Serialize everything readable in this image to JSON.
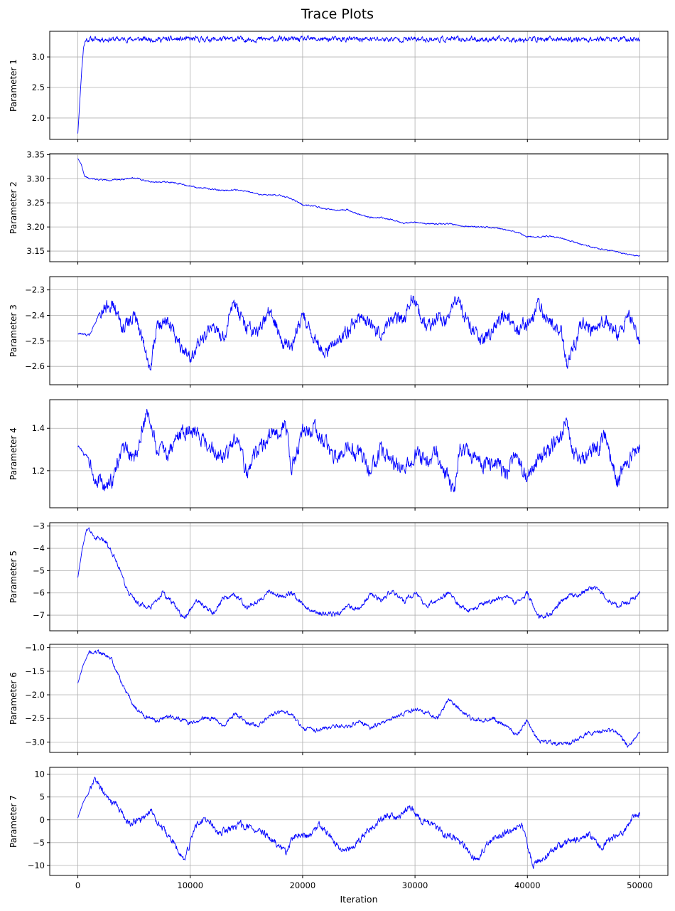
{
  "figure": {
    "title": "Trace Plots",
    "xlabel": "Iteration"
  },
  "colors": {
    "line": "#0000ff",
    "grid": "#b0b0b0",
    "axis": "#000000"
  },
  "chart_data": [
    {
      "type": "line",
      "ylabel": "Parameter 1",
      "grid": true,
      "xlim": [
        -2500,
        52500
      ],
      "ylim": [
        1.65,
        3.42
      ],
      "xticks": [
        0,
        10000,
        20000,
        30000,
        40000,
        50000
      ],
      "yticks": [
        2.0,
        2.5,
        3.0
      ],
      "ytick_labels": [
        "2.0",
        "2.5",
        "3.0"
      ],
      "x": [
        0,
        150,
        350,
        500,
        700,
        1000,
        3000,
        6000,
        10000,
        15000,
        20000,
        25000,
        30000,
        35000,
        40000,
        45000,
        50000
      ],
      "y": [
        1.75,
        2.2,
        2.8,
        3.15,
        3.28,
        3.29,
        3.29,
        3.29,
        3.29,
        3.29,
        3.29,
        3.29,
        3.29,
        3.29,
        3.29,
        3.29,
        3.29
      ],
      "noise": 0.035,
      "seed": 11
    },
    {
      "type": "line",
      "ylabel": "Parameter 2",
      "grid": true,
      "xlim": [
        -2500,
        52500
      ],
      "ylim": [
        3.128,
        3.352
      ],
      "xticks": [
        0,
        10000,
        20000,
        30000,
        40000,
        50000
      ],
      "yticks": [
        3.15,
        3.2,
        3.25,
        3.3,
        3.35
      ],
      "ytick_labels": [
        "3.15",
        "3.20",
        "3.25",
        "3.30",
        "3.35"
      ],
      "x": [
        0,
        300,
        600,
        1000,
        2000,
        3000,
        4000,
        5000,
        6000,
        7000,
        8000,
        9000,
        10000,
        11000,
        12000,
        13000,
        14000,
        15000,
        16000,
        17000,
        18000,
        19000,
        20000,
        21000,
        22000,
        23000,
        24000,
        25000,
        26000,
        27000,
        28000,
        29000,
        30000,
        31000,
        32000,
        33000,
        34000,
        35000,
        36000,
        37000,
        38000,
        39000,
        40000,
        41000,
        42000,
        43000,
        44000,
        45000,
        46000,
        47000,
        48000,
        49000,
        50000
      ],
      "y": [
        3.342,
        3.33,
        3.305,
        3.3,
        3.298,
        3.297,
        3.299,
        3.302,
        3.296,
        3.293,
        3.294,
        3.29,
        3.284,
        3.281,
        3.278,
        3.276,
        3.277,
        3.274,
        3.268,
        3.266,
        3.266,
        3.258,
        3.246,
        3.244,
        3.237,
        3.234,
        3.236,
        3.226,
        3.22,
        3.219,
        3.215,
        3.208,
        3.21,
        3.207,
        3.206,
        3.207,
        3.202,
        3.201,
        3.2,
        3.199,
        3.194,
        3.19,
        3.18,
        3.179,
        3.181,
        3.177,
        3.17,
        3.163,
        3.157,
        3.152,
        3.148,
        3.143,
        3.14
      ],
      "noise": 0.0012,
      "seed": 22
    },
    {
      "type": "line",
      "ylabel": "Parameter 3",
      "grid": true,
      "xlim": [
        -2500,
        52500
      ],
      "ylim": [
        -2.672,
        -2.248
      ],
      "xticks": [
        0,
        10000,
        20000,
        30000,
        40000,
        50000
      ],
      "yticks": [
        -2.6,
        -2.5,
        -2.4,
        -2.3
      ],
      "ytick_labels": [
        "−2.6",
        "−2.5",
        "−2.4",
        "−2.3"
      ],
      "x": [
        0,
        1000,
        2000,
        3000,
        4000,
        5000,
        6000,
        6400,
        7000,
        8000,
        9000,
        10000,
        11000,
        12000,
        13000,
        13800,
        15000,
        16000,
        17000,
        18000,
        19000,
        20000,
        21000,
        22000,
        23000,
        24000,
        25000,
        26000,
        27000,
        28000,
        29000,
        29700,
        31000,
        32000,
        33000,
        33500,
        35000,
        36000,
        37000,
        38000,
        39000,
        40000,
        41000,
        42000,
        43000,
        43500,
        45000,
        46000,
        47000,
        48000,
        49000,
        50000
      ],
      "y": [
        -2.47,
        -2.48,
        -2.38,
        -2.35,
        -2.45,
        -2.4,
        -2.52,
        -2.62,
        -2.45,
        -2.42,
        -2.5,
        -2.56,
        -2.5,
        -2.44,
        -2.5,
        -2.35,
        -2.45,
        -2.48,
        -2.38,
        -2.48,
        -2.53,
        -2.4,
        -2.48,
        -2.56,
        -2.5,
        -2.46,
        -2.41,
        -2.43,
        -2.48,
        -2.4,
        -2.43,
        -2.32,
        -2.46,
        -2.4,
        -2.43,
        -2.32,
        -2.46,
        -2.5,
        -2.45,
        -2.38,
        -2.45,
        -2.43,
        -2.36,
        -2.43,
        -2.45,
        -2.6,
        -2.42,
        -2.46,
        -2.41,
        -2.48,
        -2.4,
        -2.5
      ],
      "noise": 0.022,
      "seed": 33
    },
    {
      "type": "line",
      "ylabel": "Parameter 4",
      "grid": true,
      "xlim": [
        -2500,
        52500
      ],
      "ylim": [
        1.025,
        1.535
      ],
      "xticks": [
        0,
        10000,
        20000,
        30000,
        40000,
        50000
      ],
      "yticks": [
        1.2,
        1.4
      ],
      "ytick_labels": [
        "1.2",
        "1.4"
      ],
      "x": [
        0,
        500,
        1000,
        1500,
        2500,
        3000,
        4000,
        5000,
        6000,
        6300,
        7000,
        8000,
        9000,
        10000,
        11000,
        12000,
        13000,
        14000,
        15000,
        16000,
        17000,
        18000,
        18500,
        19000,
        20000,
        21000,
        22000,
        23000,
        24000,
        25000,
        26000,
        27000,
        28000,
        29000,
        30000,
        31000,
        32000,
        33500,
        34000,
        35000,
        36000,
        37000,
        38000,
        39000,
        40000,
        41000,
        42000,
        43000,
        43500,
        44000,
        45000,
        46000,
        47000,
        48000,
        49000,
        50000
      ],
      "y": [
        1.32,
        1.28,
        1.26,
        1.17,
        1.12,
        1.15,
        1.3,
        1.25,
        1.44,
        1.48,
        1.3,
        1.28,
        1.37,
        1.4,
        1.36,
        1.3,
        1.25,
        1.35,
        1.2,
        1.3,
        1.35,
        1.4,
        1.42,
        1.2,
        1.38,
        1.4,
        1.33,
        1.25,
        1.3,
        1.28,
        1.2,
        1.3,
        1.24,
        1.2,
        1.28,
        1.24,
        1.28,
        1.1,
        1.3,
        1.28,
        1.22,
        1.25,
        1.18,
        1.3,
        1.15,
        1.25,
        1.3,
        1.36,
        1.46,
        1.3,
        1.25,
        1.3,
        1.36,
        1.15,
        1.25,
        1.32
      ],
      "noise": 0.03,
      "seed": 44
    },
    {
      "type": "line",
      "ylabel": "Parameter 5",
      "grid": true,
      "xlim": [
        -2500,
        52500
      ],
      "ylim": [
        -7.7,
        -2.85
      ],
      "xticks": [
        0,
        10000,
        20000,
        30000,
        40000,
        50000
      ],
      "yticks": [
        -7,
        -6,
        -5,
        -4,
        -3
      ],
      "ytick_labels": [
        "−7",
        "−6",
        "−5",
        "−4",
        "−3"
      ],
      "x": [
        0,
        400,
        800,
        1500,
        2500,
        3500,
        4500,
        5500,
        6500,
        7500,
        8500,
        9500,
        10500,
        12000,
        13000,
        14000,
        15000,
        16000,
        17000,
        18000,
        19000,
        20000,
        21000,
        22000,
        23000,
        24000,
        25000,
        26000,
        27000,
        28000,
        29000,
        30000,
        31000,
        32000,
        33000,
        34000,
        35000,
        36000,
        37000,
        38000,
        39000,
        40000,
        41000,
        42000,
        43000,
        44000,
        45000,
        46000,
        47000,
        48000,
        49000,
        50000
      ],
      "y": [
        -5.3,
        -4.0,
        -3.1,
        -3.5,
        -3.7,
        -4.6,
        -6.0,
        -6.5,
        -6.7,
        -6.0,
        -6.5,
        -7.2,
        -6.3,
        -6.9,
        -6.2,
        -6.1,
        -6.6,
        -6.4,
        -5.9,
        -6.2,
        -6.0,
        -6.5,
        -6.9,
        -6.9,
        -7.0,
        -6.6,
        -6.7,
        -6.1,
        -6.3,
        -5.9,
        -6.4,
        -6.0,
        -6.6,
        -6.3,
        -6.0,
        -6.6,
        -6.8,
        -6.5,
        -6.3,
        -6.2,
        -6.5,
        -6.0,
        -7.1,
        -7.0,
        -6.4,
        -6.1,
        -6.0,
        -5.7,
        -6.2,
        -6.6,
        -6.4,
        -6.0
      ],
      "noise": 0.09,
      "seed": 55
    },
    {
      "type": "line",
      "ylabel": "Parameter 6",
      "grid": true,
      "xlim": [
        -2500,
        52500
      ],
      "ylim": [
        -3.22,
        -0.93
      ],
      "xticks": [
        0,
        10000,
        20000,
        30000,
        40000,
        50000
      ],
      "yticks": [
        -3.0,
        -2.5,
        -2.0,
        -1.5,
        -1.0
      ],
      "ytick_labels": [
        "−3.0",
        "−2.5",
        "−2.0",
        "−1.5",
        "−1.0"
      ],
      "x": [
        0,
        500,
        1000,
        2000,
        3000,
        4000,
        5000,
        6000,
        7000,
        8000,
        9000,
        10000,
        11000,
        12000,
        13000,
        14000,
        15000,
        16000,
        17000,
        18000,
        19000,
        20000,
        21000,
        22000,
        23000,
        24000,
        25000,
        26000,
        27000,
        28000,
        29000,
        30000,
        31000,
        32000,
        33000,
        34000,
        35000,
        36000,
        37000,
        38000,
        39000,
        40000,
        41000,
        42000,
        43000,
        44000,
        45000,
        46000,
        47000,
        48000,
        49000,
        50000
      ],
      "y": [
        -1.75,
        -1.35,
        -1.1,
        -1.1,
        -1.25,
        -1.8,
        -2.25,
        -2.45,
        -2.55,
        -2.45,
        -2.5,
        -2.6,
        -2.5,
        -2.5,
        -2.65,
        -2.4,
        -2.6,
        -2.65,
        -2.45,
        -2.35,
        -2.4,
        -2.7,
        -2.75,
        -2.7,
        -2.65,
        -2.7,
        -2.55,
        -2.7,
        -2.6,
        -2.5,
        -2.4,
        -2.3,
        -2.35,
        -2.5,
        -2.1,
        -2.3,
        -2.5,
        -2.55,
        -2.5,
        -2.65,
        -2.85,
        -2.55,
        -3.0,
        -3.0,
        -3.05,
        -3.0,
        -2.85,
        -2.8,
        -2.75,
        -2.8,
        -3.1,
        -2.8
      ],
      "noise": 0.035,
      "seed": 66
    },
    {
      "type": "line",
      "ylabel": "Parameter 7",
      "grid": true,
      "xlim": [
        -2500,
        52500
      ],
      "ylim": [
        -12.2,
        11.5
      ],
      "xticks": [
        0,
        10000,
        20000,
        30000,
        40000,
        50000
      ],
      "xtick_labels": [
        "0",
        "10000",
        "20000",
        "30000",
        "40000",
        "50000"
      ],
      "yticks": [
        -10,
        -5,
        0,
        5,
        10
      ],
      "ytick_labels": [
        "−10",
        "−5",
        "0",
        "5",
        "10"
      ],
      "x": [
        0,
        500,
        1000,
        1500,
        2500,
        3500,
        4500,
        5500,
        6500,
        7500,
        8500,
        9500,
        10500,
        11500,
        12500,
        13500,
        14500,
        15500,
        16500,
        17500,
        18500,
        19500,
        20500,
        21500,
        22500,
        23500,
        24500,
        25500,
        26500,
        27500,
        28500,
        29500,
        30500,
        31500,
        32500,
        33500,
        34500,
        35500,
        36500,
        37500,
        38500,
        39500,
        40500,
        41500,
        42500,
        43500,
        44500,
        45500,
        46500,
        47500,
        48500,
        49500,
        50000
      ],
      "y": [
        0.5,
        4.0,
        6.0,
        9.0,
        5.0,
        3.0,
        -1.0,
        0.0,
        2.0,
        -2.0,
        -5.0,
        -9.0,
        -1.0,
        0.0,
        -3.0,
        -2.0,
        -1.0,
        -2.0,
        -3.0,
        -5.0,
        -7.0,
        -3.0,
        -4.0,
        -1.0,
        -4.0,
        -7.0,
        -6.0,
        -3.0,
        -1.0,
        1.0,
        0.0,
        3.0,
        0.0,
        -1.0,
        -3.0,
        -4.0,
        -6.0,
        -9.0,
        -5.0,
        -4.0,
        -2.0,
        -1.0,
        -10.0,
        -8.0,
        -6.0,
        -5.0,
        -4.0,
        -3.0,
        -6.0,
        -4.0,
        -3.0,
        1.0,
        1.0
      ],
      "noise": 0.6,
      "seed": 77
    }
  ]
}
